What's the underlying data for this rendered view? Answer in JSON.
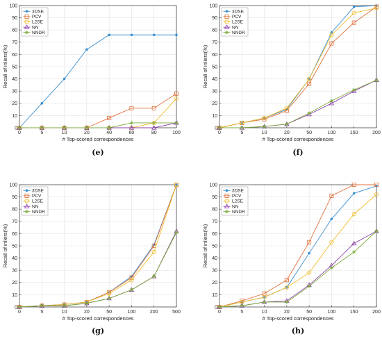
{
  "colors": {
    "3DSE": "#3a8fd0",
    "PCV": "#e0703a",
    "L2SE": "#f0bc2a",
    "NN": "#8b3fa8",
    "NNDR": "#7aab3a"
  },
  "chart_data": [
    {
      "type": "line",
      "caption": "(e)",
      "x": [
        "0",
        "5",
        "10",
        "20",
        "40",
        "60",
        "80",
        "100"
      ],
      "xlabel": "# Top-scored correspondences",
      "ylabel": "Recall of inliers(%)",
      "ylim": [
        0,
        100
      ],
      "yticks": [
        0,
        10,
        20,
        30,
        40,
        50,
        60,
        70,
        80,
        90,
        100
      ],
      "grid": true,
      "legend": "top-left",
      "series": [
        {
          "name": "3DSE",
          "values": [
            0,
            20,
            40,
            64,
            76,
            76,
            76,
            76
          ]
        },
        {
          "name": "PCV",
          "values": [
            0,
            0,
            0,
            0,
            8,
            16,
            16,
            28
          ]
        },
        {
          "name": "L2SE",
          "values": [
            0,
            0,
            0,
            0,
            0,
            0,
            4,
            24
          ]
        },
        {
          "name": "NN",
          "values": [
            0,
            0,
            0,
            0,
            0,
            0,
            0,
            4
          ]
        },
        {
          "name": "NNDR",
          "values": [
            0,
            0,
            0,
            0,
            0,
            4,
            4,
            4
          ]
        }
      ]
    },
    {
      "type": "line",
      "caption": "(f)",
      "x": [
        "0",
        "5",
        "10",
        "20",
        "50",
        "100",
        "150",
        "200"
      ],
      "xlabel": "# Top-scored correspondences",
      "ylabel": "Recall of inliers(%)",
      "ylim": [
        0,
        100
      ],
      "yticks": [
        0,
        10,
        20,
        30,
        40,
        50,
        60,
        70,
        80,
        90,
        100
      ],
      "grid": true,
      "legend": "top-left",
      "series": [
        {
          "name": "3DSE",
          "values": [
            0,
            4,
            8,
            15,
            40,
            78,
            99,
            100
          ]
        },
        {
          "name": "PCV",
          "values": [
            0,
            4,
            7,
            14,
            36,
            69,
            86,
            99
          ]
        },
        {
          "name": "L2SE",
          "values": [
            0,
            4,
            8,
            16,
            40,
            76,
            94,
            98
          ]
        },
        {
          "name": "NN",
          "values": [
            0,
            0,
            1,
            3,
            11,
            20,
            30,
            39
          ]
        },
        {
          "name": "NNDR",
          "values": [
            0,
            0,
            1,
            3,
            12,
            22,
            31,
            39
          ]
        }
      ]
    },
    {
      "type": "line",
      "caption": "(g)",
      "x": [
        "0",
        "5",
        "10",
        "20",
        "50",
        "100",
        "200",
        "500"
      ],
      "xlabel": "# Top-scored correspondences",
      "ylabel": "Recall of inliers(%)",
      "ylim": [
        0,
        100
      ],
      "yticks": [
        0,
        10,
        20,
        30,
        40,
        50,
        60,
        70,
        80,
        90,
        100
      ],
      "grid": true,
      "legend": "top-left",
      "series": [
        {
          "name": "3DSE",
          "values": [
            0,
            1,
            2,
            4,
            12,
            25,
            51,
            100
          ]
        },
        {
          "name": "PCV",
          "values": [
            0,
            1,
            2,
            4,
            12,
            24,
            50,
            100
          ]
        },
        {
          "name": "L2SE",
          "values": [
            0,
            1,
            2,
            4,
            11,
            22,
            45,
            100
          ]
        },
        {
          "name": "NN",
          "values": [
            0,
            1,
            1,
            3,
            7,
            14,
            25,
            62
          ]
        },
        {
          "name": "NNDR",
          "values": [
            0,
            1,
            1,
            3,
            7,
            14,
            25,
            61
          ]
        }
      ]
    },
    {
      "type": "line",
      "caption": "(h)",
      "x": [
        "0",
        "5",
        "10",
        "20",
        "50",
        "100",
        "150",
        "200"
      ],
      "xlabel": "# Top-scored correspondences",
      "ylabel": "Recall of inliers(%)",
      "ylim": [
        0,
        100
      ],
      "yticks": [
        0,
        10,
        20,
        30,
        40,
        50,
        60,
        70,
        80,
        90,
        100
      ],
      "grid": true,
      "legend": "top-left",
      "series": [
        {
          "name": "3DSE",
          "values": [
            0,
            4,
            8,
            16,
            44,
            72,
            93,
            99
          ]
        },
        {
          "name": "PCV",
          "values": [
            0,
            5,
            11,
            22,
            53,
            91,
            100,
            100
          ]
        },
        {
          "name": "L2SE",
          "values": [
            0,
            4,
            8,
            16,
            28,
            53,
            76,
            92
          ]
        },
        {
          "name": "NN",
          "values": [
            0,
            1,
            4,
            5,
            18,
            34,
            52,
            62
          ]
        },
        {
          "name": "NNDR",
          "values": [
            0,
            1,
            4,
            4,
            17,
            32,
            45,
            62
          ]
        }
      ]
    }
  ]
}
